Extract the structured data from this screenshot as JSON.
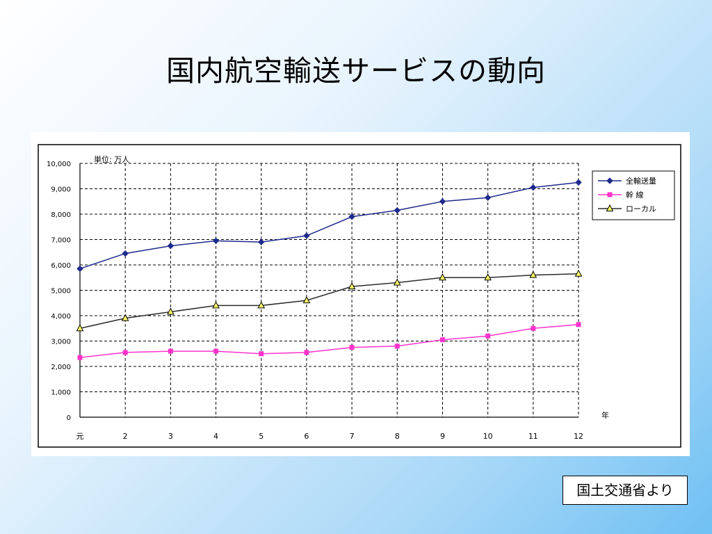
{
  "slide": {
    "title": "国内航空輸送サービスの動向",
    "source": "国土交通省より"
  },
  "chart_data": {
    "type": "line",
    "unit_label": "単位: 万人",
    "xlabel": "年",
    "ylim": [
      0,
      10000
    ],
    "y_ticks": [
      "0",
      "1,000",
      "2,000",
      "3,000",
      "4,000",
      "5,000",
      "6,000",
      "7,000",
      "8,000",
      "9,000",
      "10,000"
    ],
    "categories": [
      "元",
      "2",
      "3",
      "4",
      "5",
      "6",
      "7",
      "8",
      "9",
      "10",
      "11",
      "12"
    ],
    "grid": true,
    "legend_position": "top-right",
    "series": [
      {
        "name": "全輸送量",
        "color": "#1f2a8c",
        "marker": "diamond",
        "values": [
          5850,
          6450,
          6750,
          6950,
          6900,
          7150,
          7900,
          8150,
          8500,
          8650,
          9050,
          9250
        ]
      },
      {
        "name": "幹 線",
        "color": "#ff33cc",
        "marker": "square",
        "values": [
          2350,
          2550,
          2600,
          2600,
          2500,
          2550,
          2750,
          2800,
          3050,
          3200,
          3500,
          3650
        ]
      },
      {
        "name": "ローカル",
        "color": "#2b2b2b",
        "marker": "triangle",
        "values": [
          3500,
          3900,
          4150,
          4400,
          4400,
          4600,
          5150,
          5300,
          5500,
          5500,
          5600,
          5650
        ]
      }
    ]
  }
}
